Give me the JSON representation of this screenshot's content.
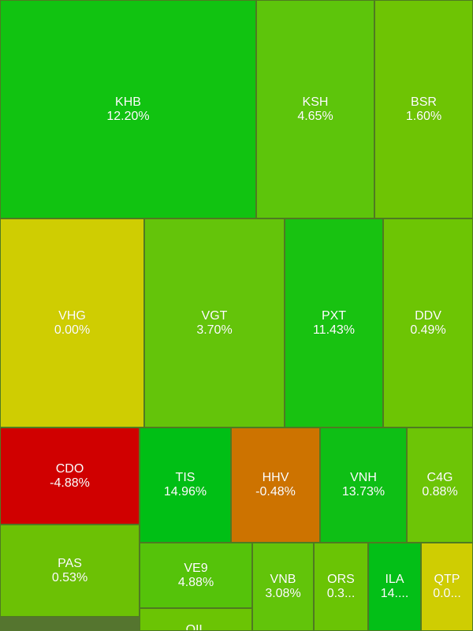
{
  "chart_data": {
    "type": "treemap",
    "items": [
      {
        "symbol": "KHB",
        "change": "12.20%",
        "value": 12.2,
        "color": "#11c311"
      },
      {
        "symbol": "KSH",
        "change": "4.65%",
        "value": 4.65,
        "color": "#5dc50b"
      },
      {
        "symbol": "BSR",
        "change": "1.60%",
        "value": 1.6,
        "color": "#6ec404"
      },
      {
        "symbol": "VHG",
        "change": "0.00%",
        "value": 0.0,
        "color": "#cfcd02"
      },
      {
        "symbol": "VGT",
        "change": "3.70%",
        "value": 3.7,
        "color": "#64c40a"
      },
      {
        "symbol": "PXT",
        "change": "11.43%",
        "value": 11.43,
        "color": "#18c211"
      },
      {
        "symbol": "DDV",
        "change": "0.49%",
        "value": 0.49,
        "color": "#6dc504"
      },
      {
        "symbol": "CDO",
        "change": "-4.88%",
        "value": -4.88,
        "color": "#d00000"
      },
      {
        "symbol": "TIS",
        "change": "14.96%",
        "value": 14.96,
        "color": "#00bf15"
      },
      {
        "symbol": "HHV",
        "change": "-0.48%",
        "value": -0.48,
        "color": "#cd7300"
      },
      {
        "symbol": "VNH",
        "change": "13.73%",
        "value": 13.73,
        "color": "#0ebf15"
      },
      {
        "symbol": "C4G",
        "change": "0.88%",
        "value": 0.88,
        "color": "#6dc506"
      },
      {
        "symbol": "PAS",
        "change": "0.53%",
        "value": 0.53,
        "color": "#6cc105"
      },
      {
        "symbol": "VE9",
        "change": "4.88%",
        "value": 4.88,
        "color": "#55c30a"
      },
      {
        "symbol": "VNB",
        "change": "3.08%",
        "value": 3.08,
        "color": "#62c40a"
      },
      {
        "symbol": "ORS",
        "change": "0.3...",
        "value": null,
        "color": "#6ac405"
      },
      {
        "symbol": "ILA",
        "change": "14....",
        "value": null,
        "color": "#03bf17"
      },
      {
        "symbol": "QTP",
        "change": "0.0...",
        "value": null,
        "color": "#cfcd02"
      },
      {
        "symbol": "OIL",
        "change": "",
        "value": null,
        "color": "#6bc404"
      }
    ]
  }
}
